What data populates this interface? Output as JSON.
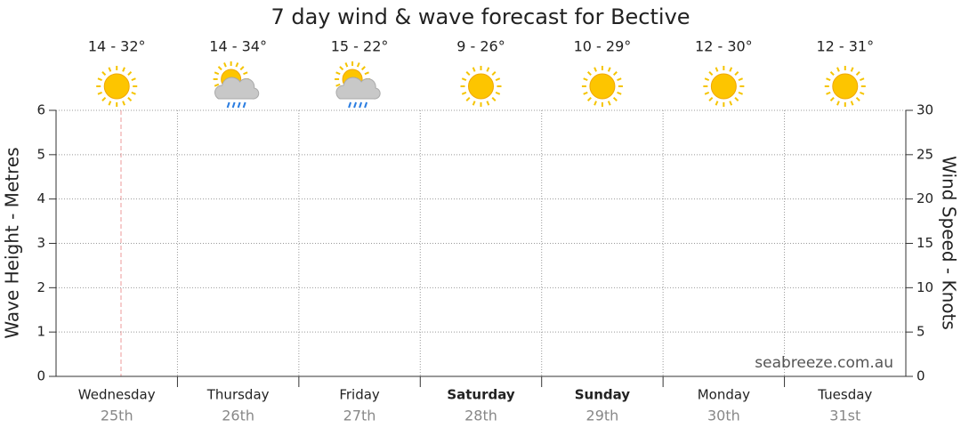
{
  "chart_data": {
    "type": "line",
    "title": "7 day wind & wave forecast for Bective",
    "categories": [
      "Wednesday",
      "Thursday",
      "Friday",
      "Saturday",
      "Sunday",
      "Monday",
      "Tuesday"
    ],
    "dates": [
      "25th",
      "26th",
      "27th",
      "28th",
      "29th",
      "30th",
      "31st"
    ],
    "bold": [
      false,
      false,
      false,
      true,
      true,
      false,
      false
    ],
    "temperatures": [
      "14 - 32°",
      "14 - 34°",
      "15 - 22°",
      "9 - 26°",
      "10 - 29°",
      "12 - 30°",
      "12 - 31°"
    ],
    "icons": [
      "sun",
      "rain",
      "rain",
      "sun",
      "sun",
      "sun",
      "sun"
    ],
    "ylabel": "Wave Height - Metres",
    "y2label": "Wind Speed - Knots",
    "ylim": [
      0,
      6
    ],
    "yticks": [
      0,
      1,
      2,
      3,
      4,
      5,
      6
    ],
    "y2lim": [
      0,
      30
    ],
    "y2ticks": [
      0,
      5,
      10,
      15,
      20,
      25,
      30
    ],
    "series": [],
    "grid": true,
    "watermark": "seabreeze.com.au"
  }
}
